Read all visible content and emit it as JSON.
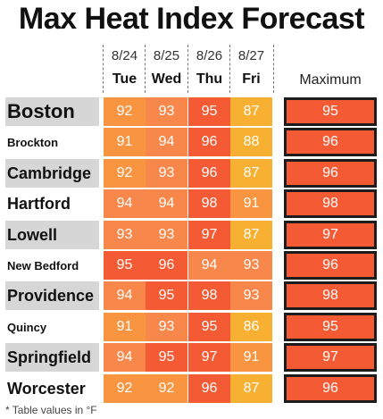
{
  "title": "Max Heat Index Forecast",
  "footnote": "* Table values in °F",
  "max_header": "Maximum",
  "colors": {
    "86": "#f7b031",
    "87": "#f7b031",
    "88": "#f7b031",
    "91": "#f99440",
    "92": "#f99440",
    "93": "#f7874a",
    "94": "#f7874a",
    "95": "#f45a33",
    "96": "#f45a33",
    "97": "#f45a33",
    "98": "#f45a33",
    "label_shade": "#d6d6d6"
  },
  "chart_data": {
    "type": "table",
    "title": "Max Heat Index Forecast",
    "dates": [
      "8/24",
      "8/25",
      "8/26",
      "8/27"
    ],
    "days": [
      "Tue",
      "Wed",
      "Thu",
      "Fri"
    ],
    "rows": [
      {
        "city": "Boston",
        "values": [
          92,
          93,
          95,
          87
        ],
        "max": 95
      },
      {
        "city": "Brockton",
        "values": [
          91,
          94,
          96,
          88
        ],
        "max": 96
      },
      {
        "city": "Cambridge",
        "values": [
          92,
          93,
          96,
          87
        ],
        "max": 96
      },
      {
        "city": "Hartford",
        "values": [
          94,
          94,
          98,
          91
        ],
        "max": 98
      },
      {
        "city": "Lowell",
        "values": [
          93,
          93,
          97,
          87
        ],
        "max": 97
      },
      {
        "city": "New Bedford",
        "values": [
          95,
          96,
          94,
          93
        ],
        "max": 96
      },
      {
        "city": "Providence",
        "values": [
          94,
          95,
          98,
          93
        ],
        "max": 98
      },
      {
        "city": "Quincy",
        "values": [
          91,
          93,
          95,
          86
        ],
        "max": 95
      },
      {
        "city": "Springfield",
        "values": [
          94,
          95,
          97,
          91
        ],
        "max": 97
      },
      {
        "city": "Worcester",
        "values": [
          92,
          92,
          96,
          87
        ],
        "max": 96
      }
    ]
  }
}
